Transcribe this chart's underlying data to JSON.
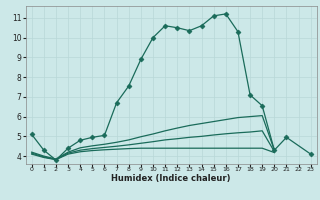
{
  "xlabel": "Humidex (Indice chaleur)",
  "background_color": "#cce8e8",
  "grid_color": "#b8d8d8",
  "line_color": "#1a6b5a",
  "xlim": [
    -0.5,
    23.5
  ],
  "ylim": [
    3.6,
    11.6
  ],
  "xticks": [
    0,
    1,
    2,
    3,
    4,
    5,
    6,
    7,
    8,
    9,
    10,
    11,
    12,
    13,
    14,
    15,
    16,
    17,
    18,
    19,
    20,
    21,
    22,
    23
  ],
  "yticks": [
    4,
    5,
    6,
    7,
    8,
    9,
    10,
    11
  ],
  "series": [
    {
      "x": [
        0,
        1,
        2,
        3,
        4,
        5,
        6,
        7,
        8,
        9,
        10,
        11,
        12,
        13,
        14,
        15,
        16,
        17,
        18,
        19,
        20,
        21,
        23
      ],
      "y": [
        5.1,
        4.3,
        3.8,
        4.4,
        4.8,
        4.95,
        5.05,
        6.7,
        7.55,
        8.9,
        10.0,
        10.6,
        10.5,
        10.35,
        10.6,
        11.1,
        11.2,
        10.3,
        7.1,
        6.55,
        4.3,
        4.95,
        4.1
      ],
      "marker": "D",
      "markersize": 2.5,
      "linewidth": 0.9
    },
    {
      "x": [
        0,
        1,
        2,
        3,
        4,
        5,
        6,
        7,
        8,
        9,
        10,
        11,
        12,
        13,
        14,
        15,
        16,
        17,
        18,
        19,
        20
      ],
      "y": [
        4.2,
        4.0,
        3.85,
        4.2,
        4.42,
        4.52,
        4.6,
        4.7,
        4.82,
        4.98,
        5.12,
        5.28,
        5.42,
        5.55,
        5.65,
        5.75,
        5.85,
        5.95,
        6.0,
        6.05,
        4.3
      ],
      "marker": null,
      "markersize": 0,
      "linewidth": 0.9
    },
    {
      "x": [
        0,
        1,
        2,
        3,
        4,
        5,
        6,
        7,
        8,
        9,
        10,
        11,
        12,
        13,
        14,
        15,
        16,
        17,
        18,
        19,
        20
      ],
      "y": [
        4.1,
        3.93,
        3.82,
        4.1,
        4.22,
        4.28,
        4.32,
        4.35,
        4.38,
        4.4,
        4.4,
        4.4,
        4.4,
        4.4,
        4.4,
        4.4,
        4.4,
        4.4,
        4.4,
        4.4,
        4.18
      ],
      "marker": null,
      "markersize": 0,
      "linewidth": 0.9
    },
    {
      "x": [
        0,
        1,
        2,
        3,
        4,
        5,
        6,
        7,
        8,
        9,
        10,
        11,
        12,
        13,
        14,
        15,
        16,
        17,
        18,
        19,
        20
      ],
      "y": [
        4.15,
        3.96,
        3.83,
        4.15,
        4.3,
        4.38,
        4.44,
        4.5,
        4.57,
        4.65,
        4.73,
        4.82,
        4.88,
        4.95,
        5.0,
        5.07,
        5.13,
        5.18,
        5.22,
        5.28,
        4.23
      ],
      "marker": null,
      "markersize": 0,
      "linewidth": 0.9
    }
  ]
}
